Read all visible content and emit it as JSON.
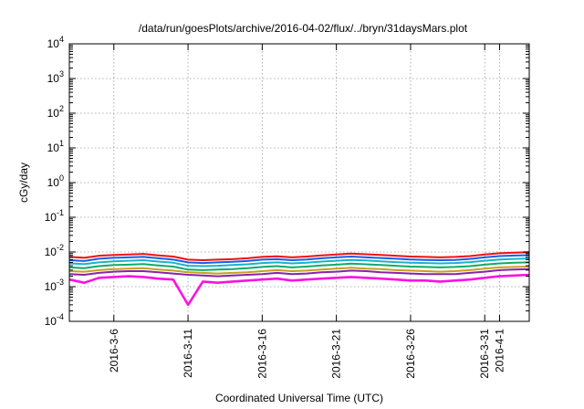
{
  "chart_data": {
    "type": "line",
    "title": "/data/run/goesPlots/archive/2016-04-02/flux/../bryn/31daysMars.plot",
    "xlabel": "Coordinated Universal Time (UTC)",
    "ylabel": "cGy/day",
    "yscale": "log",
    "ylim": [
      0.0001,
      10000
    ],
    "xlim": [
      "2016-03-03",
      "2016-04-03"
    ],
    "grid": true,
    "y_ticks": [
      {
        "base": "10",
        "exp": "-4"
      },
      {
        "base": "10",
        "exp": "-3"
      },
      {
        "base": "10",
        "exp": "-2"
      },
      {
        "base": "10",
        "exp": "-1"
      },
      {
        "base": "10",
        "exp": "0"
      },
      {
        "base": "10",
        "exp": "1"
      },
      {
        "base": "10",
        "exp": "2"
      },
      {
        "base": "10",
        "exp": "3"
      },
      {
        "base": "10",
        "exp": "4"
      }
    ],
    "x_ticks": [
      {
        "date": "2016-03-06",
        "label": "2016-3-6"
      },
      {
        "date": "2016-03-11",
        "label": "2016-3-11"
      },
      {
        "date": "2016-03-16",
        "label": "2016-3-16"
      },
      {
        "date": "2016-03-21",
        "label": "2016-3-21"
      },
      {
        "date": "2016-03-26",
        "label": "2016-3-26"
      },
      {
        "date": "2016-03-31",
        "label": "2016-3-31"
      },
      {
        "date": "2016-04-01",
        "label": "2016-4-1"
      }
    ],
    "x_points": [
      "2016-03-03",
      "2016-03-04",
      "2016-03-05",
      "2016-03-06",
      "2016-03-07",
      "2016-03-08",
      "2016-03-09",
      "2016-03-10",
      "2016-03-11",
      "2016-03-12",
      "2016-03-13",
      "2016-03-14",
      "2016-03-15",
      "2016-03-16",
      "2016-03-17",
      "2016-03-18",
      "2016-03-19",
      "2016-03-20",
      "2016-03-21",
      "2016-03-22",
      "2016-03-23",
      "2016-03-24",
      "2016-03-25",
      "2016-03-26",
      "2016-03-27",
      "2016-03-28",
      "2016-03-29",
      "2016-03-30",
      "2016-03-31",
      "2016-04-01",
      "2016-04-02",
      "2016-04-03"
    ],
    "series": [
      {
        "color": "#ee1111",
        "values": [
          0.0072,
          0.0068,
          0.0078,
          0.0082,
          0.0085,
          0.0088,
          0.008,
          0.0074,
          0.006,
          0.0058,
          0.006,
          0.0062,
          0.0066,
          0.0072,
          0.0075,
          0.007,
          0.0074,
          0.008,
          0.0085,
          0.009,
          0.0086,
          0.0082,
          0.0078,
          0.0074,
          0.0072,
          0.007,
          0.0072,
          0.0076,
          0.0085,
          0.0092,
          0.0095,
          0.0098
        ]
      },
      {
        "color": "#1a5de8",
        "values": [
          0.0058,
          0.0055,
          0.0064,
          0.0068,
          0.007,
          0.0072,
          0.0066,
          0.006,
          0.005,
          0.0048,
          0.005,
          0.0052,
          0.0055,
          0.006,
          0.0062,
          0.0058,
          0.0061,
          0.0066,
          0.007,
          0.0074,
          0.007,
          0.0067,
          0.0064,
          0.0061,
          0.0059,
          0.0058,
          0.0059,
          0.0063,
          0.007,
          0.0076,
          0.0079,
          0.0081
        ]
      },
      {
        "color": "#18b4c8",
        "values": [
          0.0047,
          0.0045,
          0.005,
          0.0054,
          0.0056,
          0.0058,
          0.0053,
          0.0049,
          0.004,
          0.0039,
          0.004,
          0.0042,
          0.0044,
          0.0048,
          0.005,
          0.0047,
          0.0049,
          0.0053,
          0.0056,
          0.0059,
          0.0057,
          0.0054,
          0.0051,
          0.0049,
          0.0048,
          0.0047,
          0.0048,
          0.0051,
          0.0056,
          0.0061,
          0.0063,
          0.0065
        ]
      },
      {
        "color": "#11aa66",
        "values": [
          0.0036,
          0.0034,
          0.0039,
          0.0042,
          0.0043,
          0.0045,
          0.0041,
          0.0038,
          0.0031,
          0.003,
          0.0031,
          0.0032,
          0.0034,
          0.0037,
          0.0039,
          0.0036,
          0.0038,
          0.0041,
          0.0043,
          0.0046,
          0.0044,
          0.0042,
          0.004,
          0.0038,
          0.0037,
          0.0036,
          0.0037,
          0.0039,
          0.0043,
          0.0047,
          0.0049,
          0.005
        ]
      },
      {
        "color": "#c8a020",
        "values": [
          0.0028,
          0.0027,
          0.003,
          0.0032,
          0.0033,
          0.0034,
          0.0031,
          0.0029,
          0.0026,
          0.0025,
          0.0024,
          0.0025,
          0.0026,
          0.0028,
          0.003,
          0.0028,
          0.0029,
          0.0031,
          0.0033,
          0.0035,
          0.0033,
          0.0032,
          0.003,
          0.0029,
          0.0028,
          0.0027,
          0.0028,
          0.003,
          0.0033,
          0.0036,
          0.0037,
          0.0038
        ]
      },
      {
        "color": "#8822aa",
        "values": [
          0.0023,
          0.0022,
          0.0025,
          0.0027,
          0.0028,
          0.0028,
          0.0026,
          0.0024,
          0.0022,
          0.0021,
          0.002,
          0.0021,
          0.0022,
          0.0023,
          0.0025,
          0.0023,
          0.0024,
          0.0026,
          0.0027,
          0.0029,
          0.0028,
          0.0026,
          0.0025,
          0.0024,
          0.0023,
          0.0023,
          0.0023,
          0.0025,
          0.0027,
          0.003,
          0.0031,
          0.0032
        ]
      },
      {
        "color": "#ff10e0",
        "values": [
          0.0016,
          0.0013,
          0.0018,
          0.0019,
          0.002,
          0.0019,
          0.0017,
          0.0016,
          0.0003,
          0.0014,
          0.0013,
          0.0014,
          0.0015,
          0.0016,
          0.0017,
          0.0015,
          0.0016,
          0.0017,
          0.0018,
          0.0019,
          0.0018,
          0.0017,
          0.0016,
          0.0015,
          0.0015,
          0.0014,
          0.0015,
          0.0016,
          0.0018,
          0.002,
          0.0021,
          0.0022
        ]
      }
    ]
  }
}
